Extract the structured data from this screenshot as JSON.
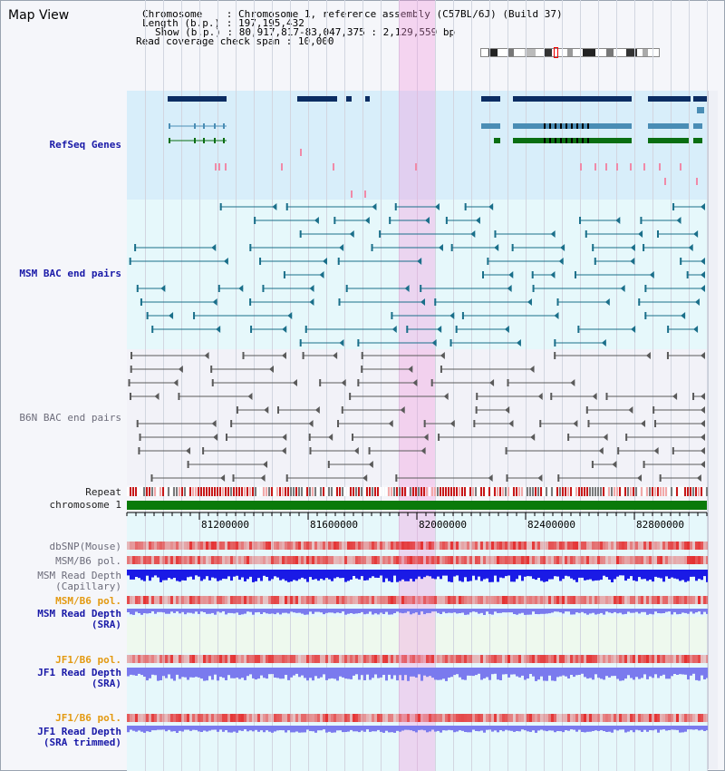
{
  "window": {
    "title": "Map View"
  },
  "info": {
    "chromosome_key": "Chromosome",
    "chromosome_val": ": Chromosome 1, reference assembly (C57BL/6J) (Build 37)",
    "length_key": "Length (b.p.)",
    "length_val": ": 197,195,432",
    "show_key": "Show (b.p.)",
    "show_val": ": 80,917,817-83,047,375 : 2,129,559 bp",
    "span_key": "Read coverage check span",
    "span_val": ": 10,000"
  },
  "tracks": {
    "refseq": "RefSeq Genes",
    "msm_bac": "MSM BAC end pairs",
    "b6n_bac": "B6N BAC end pairs",
    "repeat": "Repeat",
    "chromosome": "chromosome 1",
    "dbsnp": "dbSNP(Mouse)",
    "msm_b6_pol_1": "MSM/B6 pol.",
    "msm_depth_cap_1": "MSM Read Depth",
    "msm_depth_cap_2": "(Capillary)",
    "msm_b6_pol_2": "MSM/B6 pol.",
    "msm_depth_sra_1": "MSM Read Depth",
    "msm_depth_sra_2": "(SRA)",
    "jf1_b6_pol_1": "JF1/B6 pol.",
    "jf1_depth_sra_1": "JF1 Read Depth",
    "jf1_depth_sra_2": "(SRA)",
    "jf1_b6_pol_2": "JF1/B6 pol.",
    "jf1_depth_trim_1": "JF1 Read Depth",
    "jf1_depth_trim_2": "(SRA trimmed)"
  },
  "ruler": {
    "ticks": [
      "81200000",
      "81600000",
      "82000000",
      "82400000",
      "82800000"
    ]
  },
  "colors": {
    "refseq_bg": "#d8eefa",
    "bac_bg": "#e6f8fb",
    "gene_dark": "#0b2d63",
    "gene_mid": "#4a8db5",
    "gene_green": "#0a6e12",
    "msm_bac": "#1a6f8a",
    "b6n_bac": "#5a5a5a",
    "chromosome_bar": "#0a7a0a",
    "pol_red": "#e84a4a",
    "depth_blue": "#1a1ae6",
    "depth_light": "#7a7aee",
    "highlight": "#f4a6e2"
  }
}
